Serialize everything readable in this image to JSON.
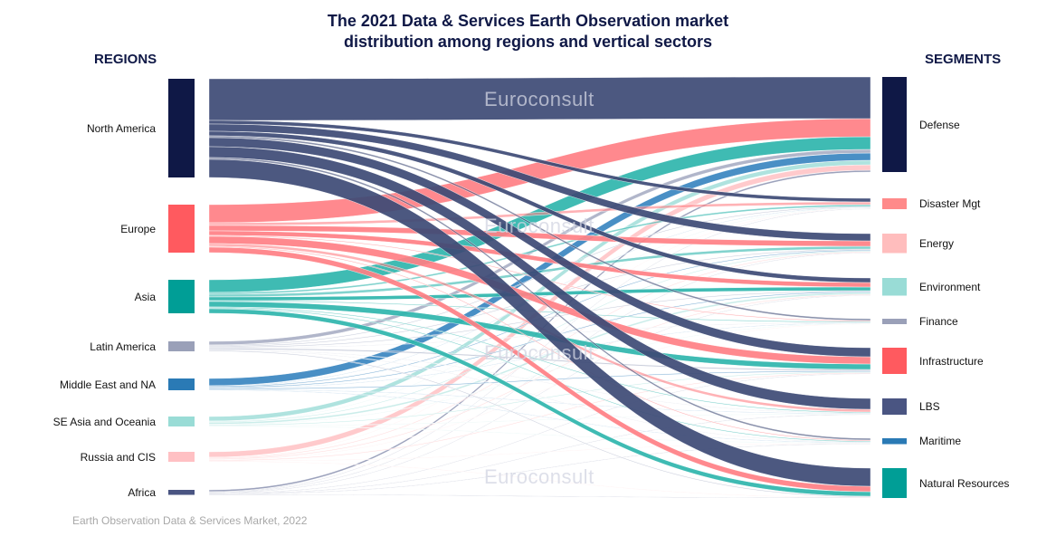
{
  "title_line1": "The 2021 Data & Services Earth Observation market",
  "title_line2": "distribution among regions and vertical sectors",
  "left_header": "REGIONS",
  "right_header": "SEGMENTS",
  "footer": "Earth Observation Data & Services Market, 2022",
  "watermark": "Euroconsult",
  "regions": [
    {
      "name": "North America",
      "node_color": "#0f1846",
      "link_color": "#3d4a75"
    },
    {
      "name": "Europe",
      "node_color": "#ff5a5f",
      "link_color": "#ff7f84"
    },
    {
      "name": "Asia",
      "node_color": "#009e96",
      "link_color": "#2fb5ad"
    },
    {
      "name": "Latin America",
      "node_color": "#9aa0b8",
      "link_color": "#aab0c6"
    },
    {
      "name": "Middle East and NA",
      "node_color": "#2a7ab5",
      "link_color": "#3a86c0"
    },
    {
      "name": "SE Asia and Oceania",
      "node_color": "#99dcd6",
      "link_color": "#a8e1dc"
    },
    {
      "name": "Russia and CIS",
      "node_color": "#ffc0c3",
      "link_color": "#ffc6c8"
    },
    {
      "name": "Africa",
      "node_color": "#4a5582",
      "link_color": "#5a6490"
    }
  ],
  "segments": [
    {
      "name": "Defense",
      "color": "#0f1846"
    },
    {
      "name": "Disaster Mgt",
      "color": "#ff8a8a"
    },
    {
      "name": "Energy",
      "color": "#ffbdbd"
    },
    {
      "name": "Environment",
      "color": "#99dcd6"
    },
    {
      "name": "Finance",
      "color": "#9aa0b8"
    },
    {
      "name": "Infrastructure",
      "color": "#ff5a5f"
    },
    {
      "name": "LBS",
      "color": "#4a5582"
    },
    {
      "name": "Maritime",
      "color": "#2a7ab5"
    },
    {
      "name": "Natural Resources",
      "color": "#009e96"
    }
  ],
  "flows_estimated_relative": [
    [
      46,
      4,
      8,
      5,
      2,
      10,
      12,
      2,
      20
    ],
    [
      20,
      3,
      6,
      5,
      1,
      8,
      3,
      1,
      6
    ],
    [
      14,
      2,
      3,
      4,
      1,
      6,
      1,
      1,
      5
    ],
    [
      4,
      1,
      1,
      1,
      0.5,
      1.5,
      0.5,
      0.5,
      1
    ],
    [
      8,
      0.5,
      1,
      1,
      0.5,
      1,
      0.5,
      0.5,
      0
    ],
    [
      5,
      0.5,
      1,
      2,
      0.5,
      1,
      0.5,
      0.5,
      0
    ],
    [
      6,
      0.5,
      1,
      1,
      0.5,
      1,
      0,
      0.5,
      0.5
    ],
    [
      2,
      0.5,
      0.5,
      0.5,
      0,
      0.5,
      0.5,
      0.5,
      0.5
    ]
  ]
}
